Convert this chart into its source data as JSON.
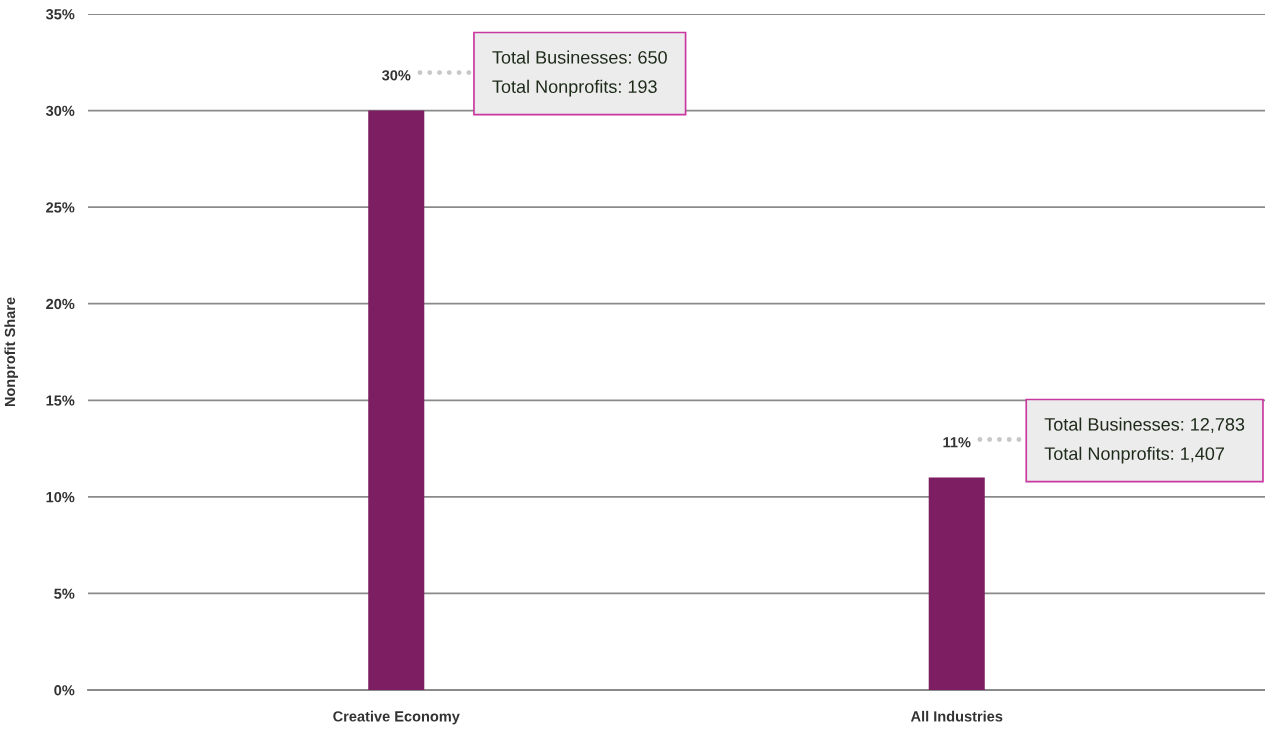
{
  "chart_data": {
    "type": "bar",
    "ylabel": "Nonprofit Share",
    "categories": [
      "Creative Economy",
      "All Industries"
    ],
    "values": [
      30,
      11
    ],
    "color": "#7d1d62",
    "value_labels": [
      "30%",
      "11%"
    ],
    "ylim": [
      0,
      35
    ],
    "yticks": [
      {
        "value": 0,
        "label": "0%"
      },
      {
        "value": 5,
        "label": "5%"
      },
      {
        "value": 10,
        "label": "10%"
      },
      {
        "value": 15,
        "label": "15%"
      },
      {
        "value": 20,
        "label": "20%"
      },
      {
        "value": 25,
        "label": "25%"
      },
      {
        "value": 30,
        "label": "30%"
      },
      {
        "value": 35,
        "label": "35%"
      }
    ],
    "grid": "y",
    "annotations": [
      "Total Businesses: 650\nTotal Nonprofits: 193",
      "Total Businesses: 12,783\nTotal Nonprofits: 1,407"
    ]
  }
}
